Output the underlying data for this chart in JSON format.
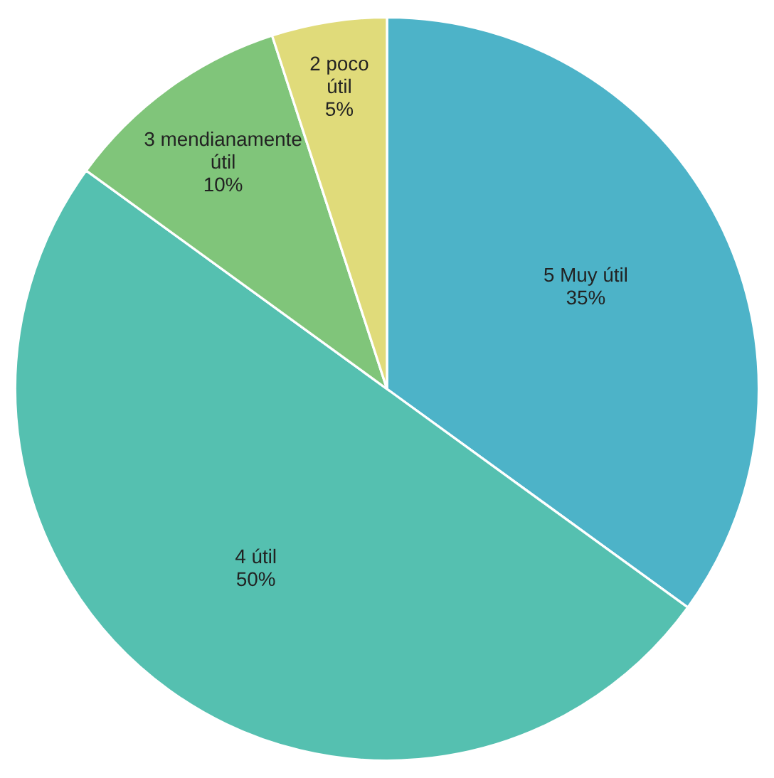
{
  "chart_data": {
    "type": "pie",
    "categories": [
      "5 Muy útil",
      "4 útil",
      "3 mendianamente útil",
      "2 poco útil"
    ],
    "values": [
      35,
      50,
      10,
      5
    ],
    "value_labels": [
      "35%",
      "50%",
      "10%",
      "5%"
    ],
    "colors": [
      "#4db3c8",
      "#55c0b0",
      "#80c57a",
      "#e0db7a"
    ]
  }
}
